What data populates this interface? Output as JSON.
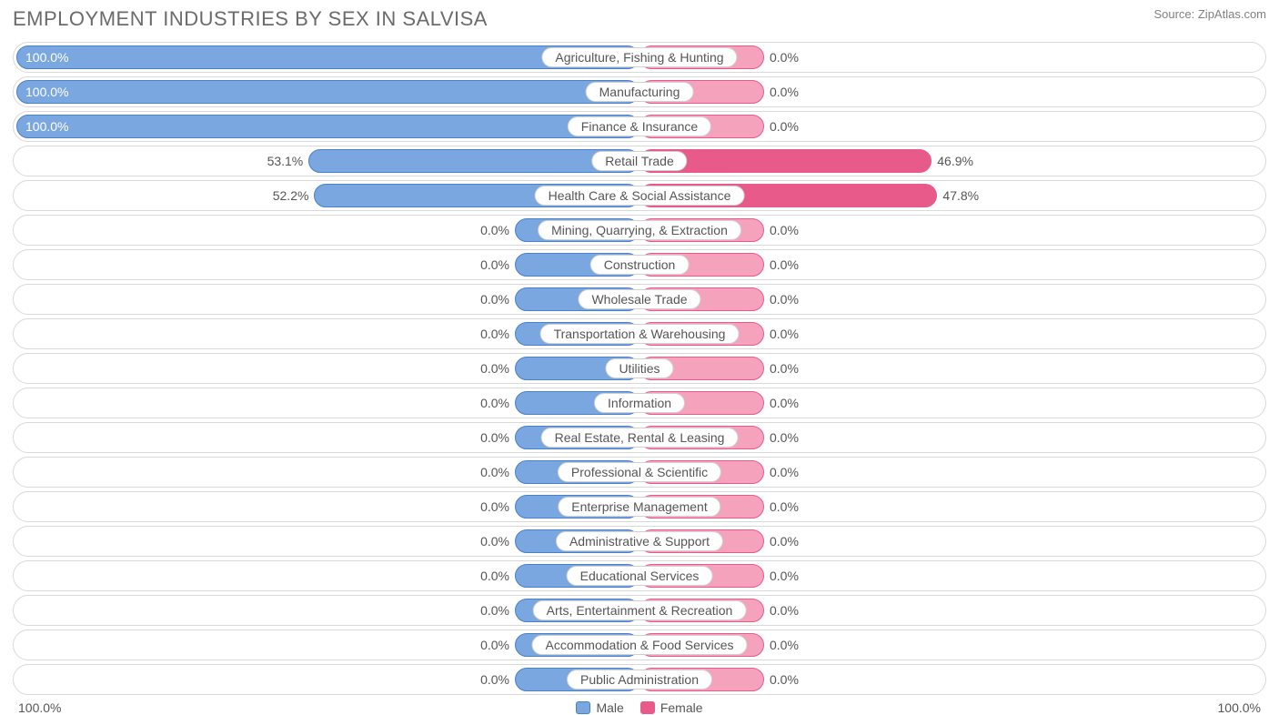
{
  "title": "EMPLOYMENT INDUSTRIES BY SEX IN SALVISA",
  "source": "Source: ZipAtlas.com",
  "colors": {
    "male_bar": "#7ba7e0",
    "male_border": "#4a7fc9",
    "female_bar": "#f5a3bd",
    "female_border": "#e85a8a",
    "female_data_bar": "#e85a8a",
    "row_border": "#d9d9d9",
    "text": "#555555",
    "title_text": "#6b6b6b",
    "background": "#ffffff"
  },
  "chart": {
    "type": "diverging_bar",
    "default_bar_width_pct": 10,
    "rows": [
      {
        "label": "Agriculture, Fishing & Hunting",
        "male": 100.0,
        "female": 0.0,
        "male_label": "100.0%",
        "female_label": "0.0%"
      },
      {
        "label": "Manufacturing",
        "male": 100.0,
        "female": 0.0,
        "male_label": "100.0%",
        "female_label": "0.0%"
      },
      {
        "label": "Finance & Insurance",
        "male": 100.0,
        "female": 0.0,
        "male_label": "100.0%",
        "female_label": "0.0%"
      },
      {
        "label": "Retail Trade",
        "male": 53.1,
        "female": 46.9,
        "male_label": "53.1%",
        "female_label": "46.9%"
      },
      {
        "label": "Health Care & Social Assistance",
        "male": 52.2,
        "female": 47.8,
        "male_label": "52.2%",
        "female_label": "47.8%"
      },
      {
        "label": "Mining, Quarrying, & Extraction",
        "male": 0.0,
        "female": 0.0,
        "male_label": "0.0%",
        "female_label": "0.0%"
      },
      {
        "label": "Construction",
        "male": 0.0,
        "female": 0.0,
        "male_label": "0.0%",
        "female_label": "0.0%"
      },
      {
        "label": "Wholesale Trade",
        "male": 0.0,
        "female": 0.0,
        "male_label": "0.0%",
        "female_label": "0.0%"
      },
      {
        "label": "Transportation & Warehousing",
        "male": 0.0,
        "female": 0.0,
        "male_label": "0.0%",
        "female_label": "0.0%"
      },
      {
        "label": "Utilities",
        "male": 0.0,
        "female": 0.0,
        "male_label": "0.0%",
        "female_label": "0.0%"
      },
      {
        "label": "Information",
        "male": 0.0,
        "female": 0.0,
        "male_label": "0.0%",
        "female_label": "0.0%"
      },
      {
        "label": "Real Estate, Rental & Leasing",
        "male": 0.0,
        "female": 0.0,
        "male_label": "0.0%",
        "female_label": "0.0%"
      },
      {
        "label": "Professional & Scientific",
        "male": 0.0,
        "female": 0.0,
        "male_label": "0.0%",
        "female_label": "0.0%"
      },
      {
        "label": "Enterprise Management",
        "male": 0.0,
        "female": 0.0,
        "male_label": "0.0%",
        "female_label": "0.0%"
      },
      {
        "label": "Administrative & Support",
        "male": 0.0,
        "female": 0.0,
        "male_label": "0.0%",
        "female_label": "0.0%"
      },
      {
        "label": "Educational Services",
        "male": 0.0,
        "female": 0.0,
        "male_label": "0.0%",
        "female_label": "0.0%"
      },
      {
        "label": "Arts, Entertainment & Recreation",
        "male": 0.0,
        "female": 0.0,
        "male_label": "0.0%",
        "female_label": "0.0%"
      },
      {
        "label": "Accommodation & Food Services",
        "male": 0.0,
        "female": 0.0,
        "male_label": "0.0%",
        "female_label": "0.0%"
      },
      {
        "label": "Public Administration",
        "male": 0.0,
        "female": 0.0,
        "male_label": "0.0%",
        "female_label": "0.0%"
      }
    ]
  },
  "legend": {
    "left_axis": "100.0%",
    "right_axis": "100.0%",
    "male": "Male",
    "female": "Female"
  }
}
